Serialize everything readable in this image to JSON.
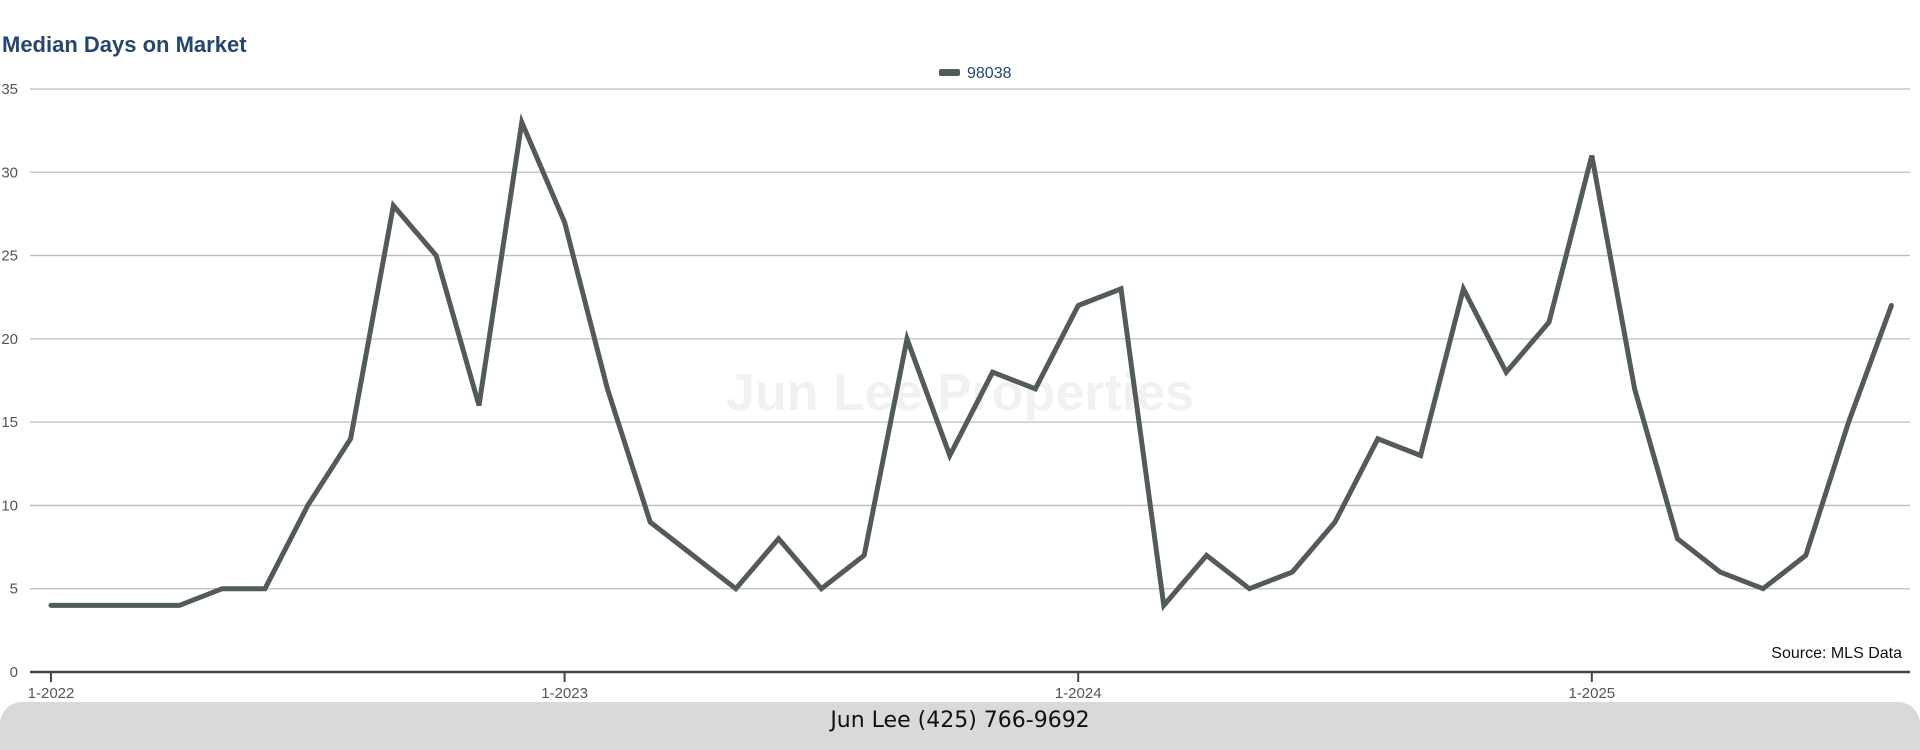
{
  "chart_data": {
    "type": "line",
    "title": "Median Days on Market",
    "xlabel": "",
    "ylabel": "",
    "ylim": [
      0,
      35
    ],
    "yticks": [
      0,
      5,
      10,
      15,
      20,
      25,
      30,
      35
    ],
    "xticks": [
      "1-2022",
      "1-2023",
      "1-2024",
      "1-2025"
    ],
    "x": [
      "2022-01",
      "2022-02",
      "2022-03",
      "2022-04",
      "2022-05",
      "2022-06",
      "2022-07",
      "2022-08",
      "2022-09",
      "2022-10",
      "2022-11",
      "2022-12",
      "2023-01",
      "2023-02",
      "2023-03",
      "2023-04",
      "2023-05",
      "2023-06",
      "2023-07",
      "2023-08",
      "2023-09",
      "2023-10",
      "2023-11",
      "2023-12",
      "2024-01",
      "2024-02",
      "2024-03",
      "2024-04",
      "2024-05",
      "2024-06",
      "2024-07",
      "2024-08",
      "2024-09",
      "2024-10",
      "2024-11",
      "2024-12",
      "2025-01",
      "2025-02",
      "2025-03",
      "2025-04",
      "2025-05",
      "2025-06",
      "2025-07",
      "2025-08"
    ],
    "series": [
      {
        "name": "98038",
        "color": "#525a5a",
        "values": [
          4,
          4,
          4,
          4,
          5,
          5,
          10,
          14,
          28,
          25,
          16,
          33,
          27,
          17,
          9,
          7,
          5,
          8,
          5,
          7,
          20,
          13,
          18,
          17,
          22,
          23,
          4,
          7,
          5,
          6,
          9,
          14,
          13,
          23,
          18,
          21,
          31,
          17,
          8,
          6,
          5,
          7,
          15,
          22
        ]
      }
    ],
    "grid": true,
    "legend": "top-center",
    "watermark": "Jun Lee Properties",
    "source": "Source: MLS Data"
  },
  "footer": {
    "contact": "Jun Lee (425) 766-9692"
  }
}
